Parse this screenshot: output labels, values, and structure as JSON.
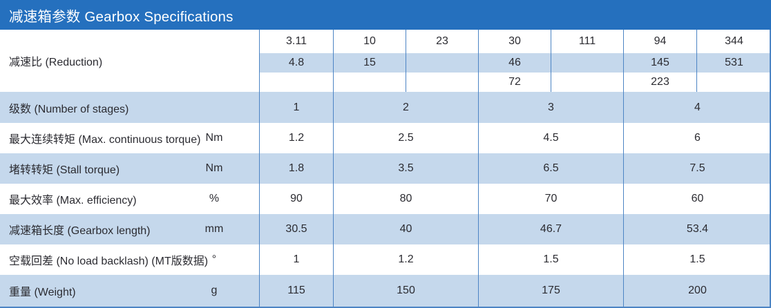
{
  "title": "减速箱参数 Gearbox Specifications",
  "colors": {
    "header_bg": "#2570BE",
    "row_shade": "#C5D8EC",
    "border": "#4C84C4",
    "text": "#2B2B31",
    "header_text": "#FFFFFF"
  },
  "table": {
    "reduction": {
      "label": "减速比 (Reduction)",
      "sub_rows": [
        [
          "3.11",
          "10",
          "23",
          "30",
          "111",
          "94",
          "344"
        ],
        [
          "4.8",
          "15",
          "",
          "46",
          "",
          "145",
          "531"
        ],
        [
          "",
          "",
          "",
          "72",
          "",
          "223",
          ""
        ]
      ]
    },
    "params": [
      {
        "label": "级数 (Number of stages)",
        "unit": "",
        "values": [
          "1",
          "2",
          "3",
          "4"
        ]
      },
      {
        "label": "最大连续转矩 (Max. continuous torque)",
        "unit": "Nm",
        "values": [
          "1.2",
          "2.5",
          "4.5",
          "6"
        ]
      },
      {
        "label": "堵转转矩 (Stall torque)",
        "unit": "Nm",
        "values": [
          "1.8",
          "3.5",
          "6.5",
          "7.5"
        ]
      },
      {
        "label": "最大效率 (Max. efficiency)",
        "unit": "%",
        "values": [
          "90",
          "80",
          "70",
          "60"
        ]
      },
      {
        "label": "减速箱长度 (Gearbox length)",
        "unit": "mm",
        "values": [
          "30.5",
          "40",
          "46.7",
          "53.4"
        ]
      },
      {
        "label": "空载回差 (No load backlash) (MT版数据)",
        "unit": "°",
        "values": [
          "1",
          "1.2",
          "1.5",
          "1.5"
        ]
      },
      {
        "label": "重量 (Weight)",
        "unit": "g",
        "values": [
          "115",
          "150",
          "175",
          "200"
        ]
      }
    ]
  }
}
